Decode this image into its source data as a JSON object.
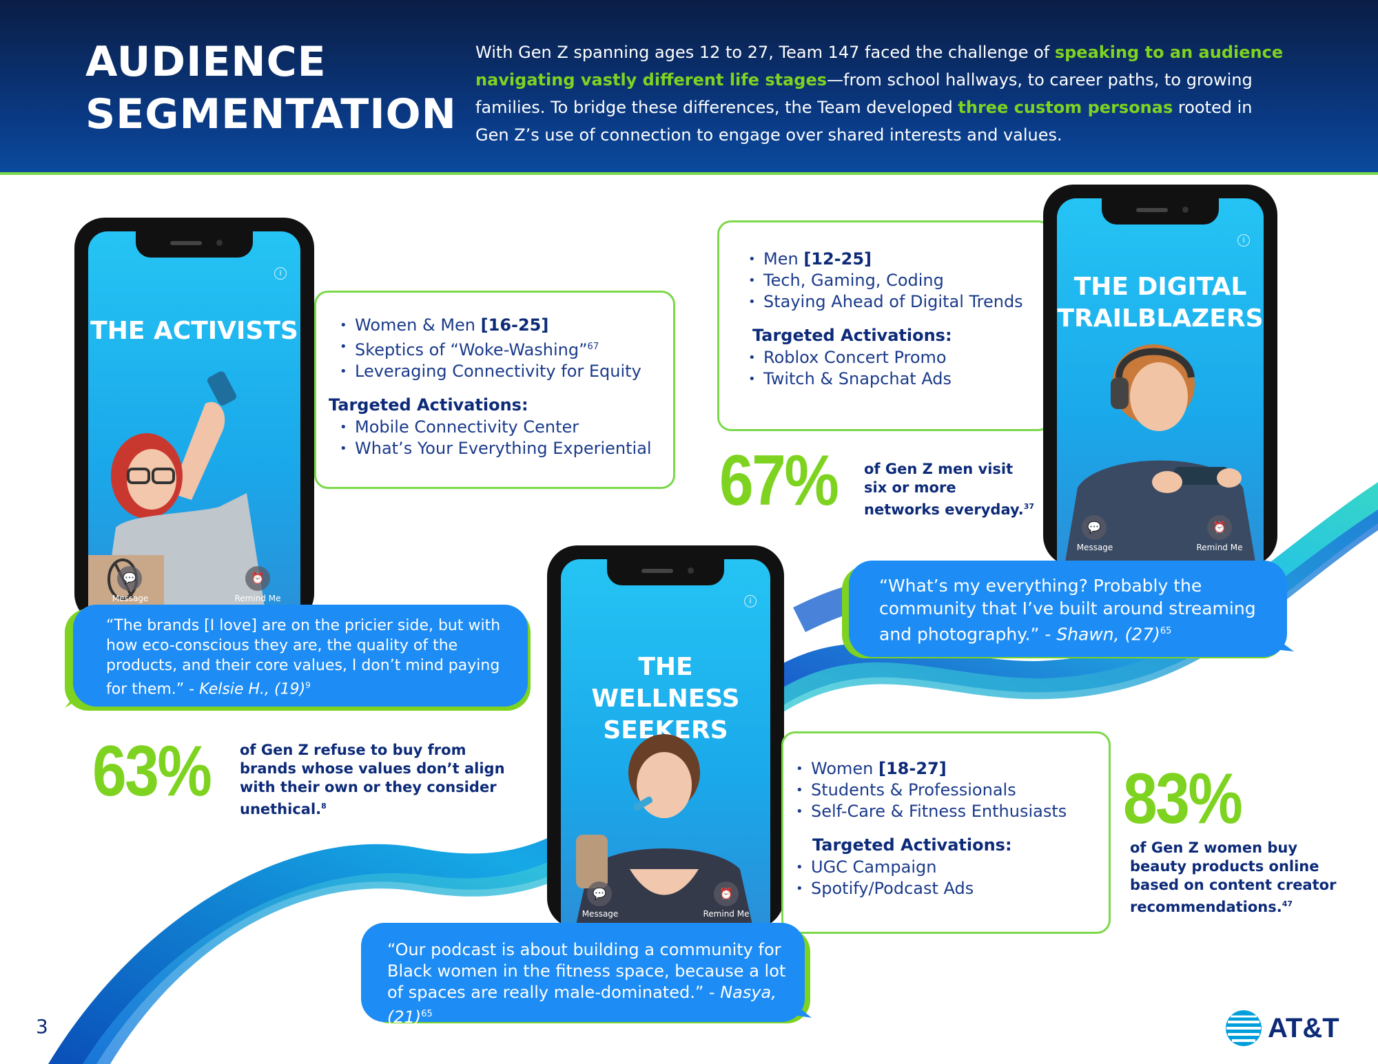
{
  "header": {
    "title_line1": "AUDIENCE",
    "title_line2": "SEGMENTATION",
    "intro_1": "With Gen Z spanning ages 12 to 27, Team 147 faced the challenge of ",
    "intro_hl1": "speaking to an audience navigating vastly different life stages",
    "intro_2": "—from school hallways, to career paths, to growing families. To bridge these differences, the Team developed ",
    "intro_hl2": "three custom personas",
    "intro_3": " rooted in Gen Z’s use of connection to engage over shared interests and values."
  },
  "colors": {
    "accent_green": "#7ed321",
    "navy": "#0c2a78",
    "bubble_blue": "#1d8cf5"
  },
  "personas": {
    "activists": {
      "phone_title": "THE ACTIVISTS",
      "bullets": [
        {
          "text": "Women & Men ",
          "bold": "[16-25]"
        },
        {
          "text": "Skeptics of “Woke-Washing”",
          "sup": "67"
        },
        {
          "text": "Leveraging Connectivity for Equity"
        }
      ],
      "activations_heading": "Targeted Activations:",
      "activations": [
        "Mobile Connectivity Center",
        "What’s Your Everything Experiential"
      ],
      "quote": "“The brands [I love] are on the pricier side, but with how eco-conscious they are, the quality of the products, and their core values, I don’t mind paying for them.” - ",
      "quote_author": "Kelsie H., (19)",
      "quote_sup": "9",
      "stat_value": "63%",
      "stat_caption": "of Gen Z refuse to buy from brands whose values don’t align with their own or they consider unethical.",
      "stat_sup": "8"
    },
    "trailblazers": {
      "phone_title_1": "THE DIGITAL",
      "phone_title_2": "TRAILBLAZERS",
      "bullets": [
        {
          "text": "Men ",
          "bold": "[12-25]"
        },
        {
          "text": "Tech, Gaming, Coding"
        },
        {
          "text": "Staying Ahead of Digital Trends"
        }
      ],
      "activations_heading": "Targeted Activations:",
      "activations": [
        "Roblox Concert Promo",
        "Twitch & Snapchat Ads"
      ],
      "quote": "“What’s my everything? Probably the community that I’ve built around streaming and photography.” - ",
      "quote_author": "Shawn, (27)",
      "quote_sup": "65",
      "stat_value": "67%",
      "stat_caption": "of Gen Z men visit six or more networks everyday.",
      "stat_sup": "37"
    },
    "wellness": {
      "phone_title_1": "THE WELLNESS",
      "phone_title_2": "SEEKERS",
      "bullets": [
        {
          "text": "Women ",
          "bold": "[18-27]"
        },
        {
          "text": "Students & Professionals"
        },
        {
          "text": "Self-Care & Fitness Enthusiasts"
        }
      ],
      "activations_heading": "Targeted Activations:",
      "activations": [
        "UGC Campaign",
        "Spotify/Podcast Ads"
      ],
      "quote": "“Our podcast is about building a community for Black women in the fitness space, because a lot of spaces are really male-dominated.” - ",
      "quote_author": "Nasya, (21)",
      "quote_sup": "65",
      "stat_value": "83%",
      "stat_caption": "of Gen Z women buy beauty products online based on content creator recommendations.",
      "stat_sup": "47"
    }
  },
  "phone_ui": {
    "message_label": "Message",
    "remind_label": "Remind Me",
    "message_icon": "chat-bubble-icon",
    "remind_icon": "alarm-clock-icon"
  },
  "footer": {
    "page_number": "3",
    "logo_text": "AT&T"
  }
}
